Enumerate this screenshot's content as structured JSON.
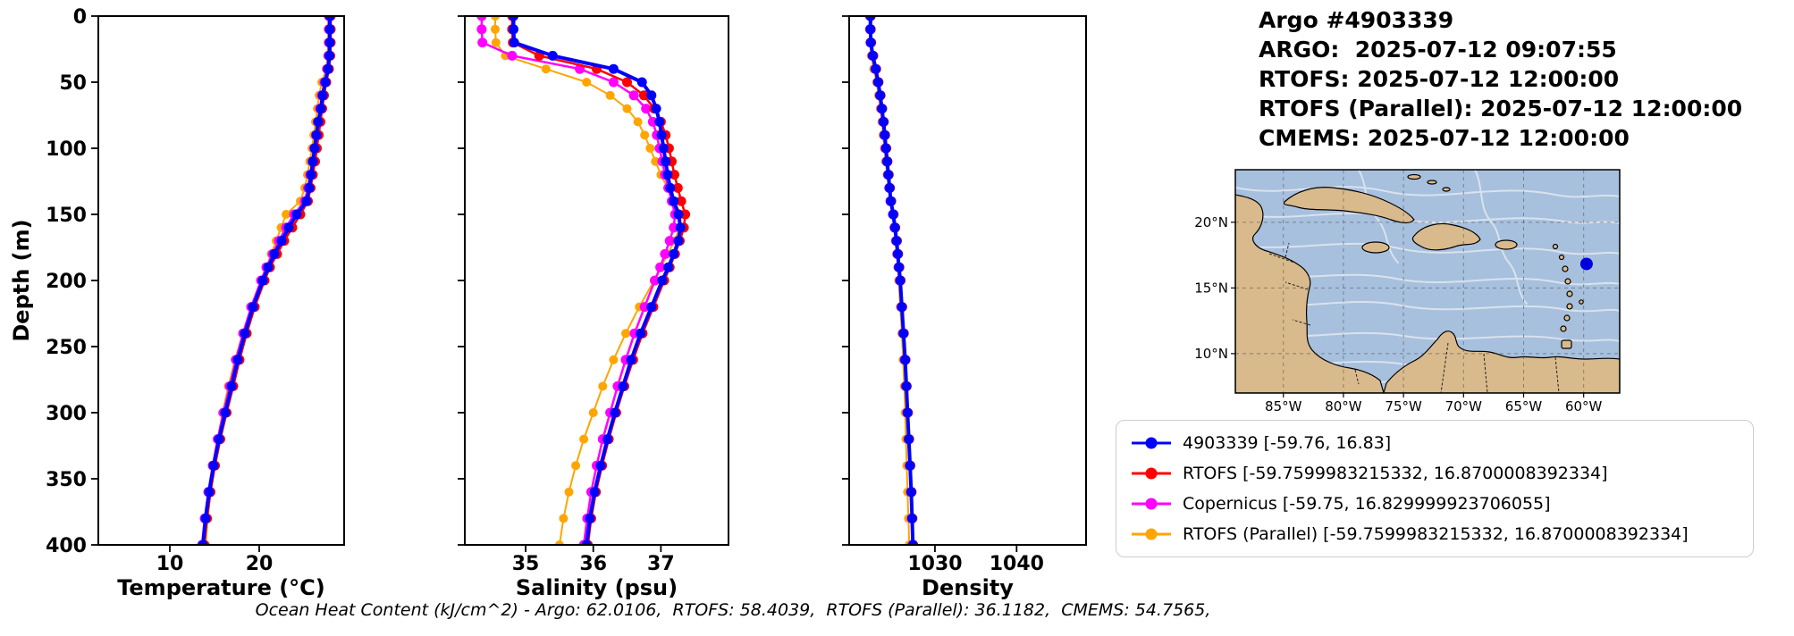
{
  "title_block": {
    "lines": [
      "Argo #4903339",
      "ARGO:  2025-07-12 09:07:55",
      "RTOFS: 2025-07-12 12:00:00",
      "RTOFS (Parallel): 2025-07-12 12:00:00",
      "CMEMS: 2025-07-12 12:00:00"
    ]
  },
  "footer_note": "Ocean Heat Content (kJ/cm^2) - Argo: 62.0106,  RTOFS: 58.4039,  RTOFS (Parallel): 36.1182,  CMEMS: 54.7565,",
  "legend": {
    "items": [
      {
        "label": "4903339 [-59.76, 16.83]",
        "color": "#0000ff"
      },
      {
        "label": "RTOFS [-59.7599983215332, 16.8700008392334]",
        "color": "#ff0000"
      },
      {
        "label": "Copernicus [-59.75, 16.829999923706055]",
        "color": "#ff00ff"
      },
      {
        "label": "RTOFS (Parallel) [-59.7599983215332, 16.8700008392334]",
        "color": "#ffa500"
      }
    ]
  },
  "map": {
    "extent": {
      "lon_min": -89,
      "lon_max": -57,
      "lat_min": 7,
      "lat_max": 24
    },
    "lon_ticks": [
      {
        "value": -85,
        "label": "85°W"
      },
      {
        "value": -80,
        "label": "80°W"
      },
      {
        "value": -75,
        "label": "75°W"
      },
      {
        "value": -70,
        "label": "70°W"
      },
      {
        "value": -65,
        "label": "65°W"
      },
      {
        "value": -60,
        "label": "60°W"
      }
    ],
    "lat_ticks": [
      {
        "value": 10,
        "label": "10°N"
      },
      {
        "value": 15,
        "label": "15°N"
      },
      {
        "value": 20,
        "label": "20°N"
      }
    ],
    "marker": {
      "lon": -59.76,
      "lat": 16.83,
      "color": "#0000dd"
    },
    "colors": {
      "ocean": "#a7c0de",
      "land": "#d9ba8c",
      "stream": "#d9e2ec"
    }
  },
  "chart_data": [
    {
      "type": "line",
      "xlabel": "Temperature (°C)",
      "ylabel": "Depth (m)",
      "xlim": [
        2,
        29.5
      ],
      "ylim": [
        0,
        400
      ],
      "y_inverted": true,
      "x_ticks": [
        10,
        20
      ],
      "y_ticks": [
        0,
        50,
        100,
        150,
        200,
        250,
        300,
        350,
        400
      ],
      "depths": [
        0,
        10,
        20,
        30,
        40,
        50,
        60,
        70,
        80,
        90,
        100,
        110,
        120,
        130,
        140,
        150,
        160,
        170,
        180,
        190,
        200,
        220,
        240,
        260,
        280,
        300,
        320,
        340,
        360,
        380,
        400
      ],
      "series": [
        {
          "name": "4903339",
          "color": "#0000ff",
          "lw": 4,
          "ms": 5.5,
          "values": [
            27.9,
            27.9,
            27.9,
            27.85,
            27.7,
            27.4,
            27.1,
            26.9,
            26.6,
            26.4,
            26.2,
            26.0,
            25.8,
            25.6,
            25.3,
            24.2,
            23.3,
            22.5,
            21.7,
            21.0,
            20.4,
            19.3,
            18.4,
            17.6,
            16.9,
            16.2,
            15.5,
            14.9,
            14.4,
            14.0,
            13.7
          ]
        },
        {
          "name": "RTOFS",
          "color": "#ff0000",
          "lw": 2.5,
          "ms": 5.5,
          "values": [
            28.0,
            28.0,
            28.0,
            27.95,
            27.8,
            27.5,
            27.25,
            27.05,
            26.85,
            26.65,
            26.45,
            26.25,
            26.0,
            25.75,
            25.45,
            24.6,
            23.7,
            22.8,
            22.0,
            21.2,
            20.6,
            19.5,
            18.6,
            17.8,
            17.1,
            16.35,
            15.65,
            15.05,
            14.55,
            14.15,
            13.85
          ]
        },
        {
          "name": "Copernicus",
          "color": "#ff00ff",
          "lw": 2.5,
          "ms": 5.5,
          "values": [
            27.8,
            27.8,
            27.8,
            27.75,
            27.6,
            27.3,
            27.0,
            26.8,
            26.55,
            26.35,
            26.15,
            25.95,
            25.7,
            25.45,
            25.1,
            23.9,
            23.0,
            22.2,
            21.5,
            20.8,
            20.2,
            19.1,
            18.2,
            17.4,
            16.7,
            16.0,
            15.35,
            14.8,
            14.3,
            13.9,
            13.6
          ]
        },
        {
          "name": "RTOFS (Parallel)",
          "color": "#ffa500",
          "lw": 2,
          "ms": 5,
          "values": [
            27.7,
            27.7,
            27.7,
            27.65,
            27.5,
            27.0,
            26.7,
            26.5,
            26.3,
            26.1,
            25.9,
            25.65,
            25.4,
            25.1,
            24.6,
            23.0,
            22.45,
            21.9,
            21.35,
            20.8,
            20.2,
            19.1,
            18.15,
            17.3,
            16.55,
            15.9,
            15.35,
            14.9,
            14.55,
            14.25,
            14.0
          ]
        }
      ]
    },
    {
      "type": "line",
      "xlabel": "Salinity (psu)",
      "ylabel": "",
      "xlim": [
        34.1,
        38.0
      ],
      "ylim": [
        0,
        400
      ],
      "y_inverted": true,
      "x_ticks": [
        35,
        36,
        37
      ],
      "y_ticks": [
        0,
        50,
        100,
        150,
        200,
        250,
        300,
        350,
        400
      ],
      "depths": [
        0,
        10,
        20,
        30,
        40,
        50,
        60,
        70,
        80,
        90,
        100,
        110,
        120,
        130,
        140,
        150,
        160,
        170,
        180,
        190,
        200,
        220,
        240,
        260,
        280,
        300,
        320,
        340,
        360,
        380,
        400
      ],
      "series": [
        {
          "name": "4903339",
          "color": "#0000ff",
          "lw": 4,
          "ms": 5.5,
          "values": [
            34.82,
            34.82,
            34.83,
            35.4,
            36.3,
            36.72,
            36.86,
            36.93,
            36.98,
            37.01,
            37.04,
            37.07,
            37.1,
            37.14,
            37.19,
            37.26,
            37.29,
            37.26,
            37.19,
            37.11,
            37.02,
            36.86,
            36.7,
            36.56,
            36.44,
            36.32,
            36.21,
            36.11,
            36.02,
            35.95,
            35.9
          ]
        },
        {
          "name": "RTOFS",
          "color": "#ff0000",
          "lw": 2.5,
          "ms": 5.5,
          "values": [
            34.8,
            34.8,
            34.81,
            35.2,
            36.05,
            36.5,
            36.75,
            36.9,
            37.0,
            37.07,
            37.12,
            37.16,
            37.2,
            37.25,
            37.3,
            37.36,
            37.34,
            37.28,
            37.21,
            37.13,
            37.05,
            36.89,
            36.73,
            36.59,
            36.46,
            36.34,
            36.23,
            36.13,
            36.04,
            35.97,
            35.92
          ]
        },
        {
          "name": "Copernicus",
          "color": "#ff00ff",
          "lw": 2.5,
          "ms": 5.5,
          "values": [
            34.35,
            34.35,
            34.36,
            34.8,
            35.8,
            36.3,
            36.6,
            36.78,
            36.88,
            36.94,
            36.98,
            37.02,
            37.06,
            37.11,
            37.16,
            37.21,
            37.19,
            37.13,
            37.06,
            36.99,
            36.91,
            36.76,
            36.61,
            36.48,
            36.36,
            36.25,
            36.14,
            36.05,
            35.97,
            35.91,
            35.86
          ]
        },
        {
          "name": "RTOFS (Parallel)",
          "color": "#ffa500",
          "lw": 2,
          "ms": 5,
          "values": [
            34.55,
            34.55,
            34.56,
            34.7,
            35.3,
            35.9,
            36.25,
            36.5,
            36.66,
            36.76,
            36.84,
            36.92,
            37.0,
            37.1,
            37.2,
            37.3,
            37.28,
            37.2,
            37.1,
            37.0,
            36.9,
            36.68,
            36.48,
            36.3,
            36.14,
            36.0,
            35.86,
            35.74,
            35.64,
            35.56,
            35.5
          ]
        }
      ]
    },
    {
      "type": "line",
      "xlabel": "Density",
      "ylabel": "",
      "xlim": [
        1019.5,
        1048.5
      ],
      "ylim": [
        0,
        400
      ],
      "y_inverted": true,
      "x_ticks": [
        1030,
        1040
      ],
      "y_ticks": [
        0,
        50,
        100,
        150,
        200,
        250,
        300,
        350,
        400
      ],
      "depths": [
        0,
        10,
        20,
        30,
        40,
        50,
        60,
        70,
        80,
        90,
        100,
        110,
        120,
        130,
        140,
        150,
        160,
        170,
        180,
        190,
        200,
        220,
        240,
        260,
        280,
        300,
        320,
        340,
        360,
        380,
        400
      ],
      "series": [
        {
          "name": "4903339",
          "color": "#0000ff",
          "lw": 4,
          "ms": 5.5,
          "values": [
            1022.1,
            1022.1,
            1022.15,
            1022.4,
            1022.75,
            1023.05,
            1023.3,
            1023.5,
            1023.7,
            1023.85,
            1024.0,
            1024.15,
            1024.3,
            1024.45,
            1024.6,
            1024.9,
            1025.1,
            1025.3,
            1025.45,
            1025.6,
            1025.75,
            1025.95,
            1026.15,
            1026.35,
            1026.5,
            1026.65,
            1026.8,
            1026.95,
            1027.1,
            1027.2,
            1027.3
          ]
        },
        {
          "name": "RTOFS",
          "color": "#ff0000",
          "lw": 2.5,
          "ms": 5.5,
          "values": [
            1022.15,
            1022.15,
            1022.2,
            1022.45,
            1022.8,
            1023.1,
            1023.35,
            1023.55,
            1023.75,
            1023.9,
            1024.05,
            1024.2,
            1024.35,
            1024.5,
            1024.65,
            1024.95,
            1025.15,
            1025.35,
            1025.5,
            1025.65,
            1025.8,
            1026.0,
            1026.2,
            1026.4,
            1026.55,
            1026.7,
            1026.85,
            1027.0,
            1027.15,
            1027.25,
            1027.35
          ]
        },
        {
          "name": "Copernicus",
          "color": "#ff00ff",
          "lw": 2.5,
          "ms": 5.5,
          "values": [
            1022.05,
            1022.05,
            1022.1,
            1022.35,
            1022.7,
            1023.0,
            1023.25,
            1023.45,
            1023.65,
            1023.8,
            1023.95,
            1024.1,
            1024.25,
            1024.4,
            1024.55,
            1024.85,
            1025.05,
            1025.25,
            1025.4,
            1025.55,
            1025.7,
            1025.9,
            1026.1,
            1026.3,
            1026.45,
            1026.6,
            1026.75,
            1026.9,
            1027.05,
            1027.15,
            1027.25
          ]
        },
        {
          "name": "RTOFS (Parallel)",
          "color": "#ffa500",
          "lw": 2,
          "ms": 5,
          "values": [
            1022.0,
            1022.0,
            1022.05,
            1022.2,
            1022.5,
            1022.85,
            1023.1,
            1023.3,
            1023.5,
            1023.65,
            1023.8,
            1023.95,
            1024.15,
            1024.35,
            1024.55,
            1024.85,
            1025.0,
            1025.15,
            1025.3,
            1025.45,
            1025.55,
            1025.75,
            1025.95,
            1026.1,
            1026.25,
            1026.35,
            1026.45,
            1026.55,
            1026.65,
            1026.75,
            1026.85
          ]
        }
      ]
    }
  ]
}
